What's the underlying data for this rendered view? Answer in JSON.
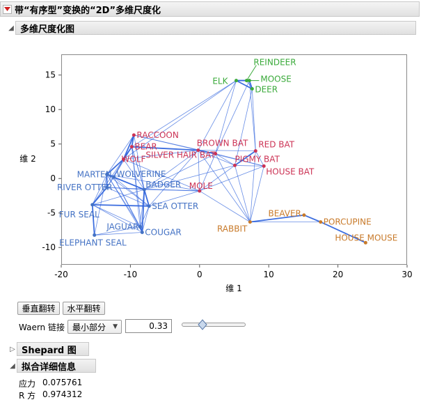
{
  "window": {
    "title": "带“有序型”变换的“2D”多维尺度化"
  },
  "mds_section": {
    "label": "多维尺度化图"
  },
  "plot": {
    "xlabel": "维 1",
    "ylabel": "维 2",
    "xlim": [
      -20,
      30
    ],
    "ylim": [
      -12.5,
      18
    ],
    "xticks": [
      -20,
      -10,
      0,
      10,
      20,
      30
    ],
    "yticks": [
      -10,
      -5,
      0,
      5,
      10,
      15
    ],
    "colors": {
      "green": "#3aaa3a",
      "red": "#cc3355",
      "blue": "#4472c4",
      "orange": "#c87a2a",
      "edge": "#3366dd"
    }
  },
  "chart_data": {
    "type": "scatter",
    "xlabel": "维 1",
    "ylabel": "维 2",
    "xlim": [
      -20,
      30
    ],
    "ylim": [
      -12.5,
      18
    ],
    "points": [
      {
        "label": "REINDEER",
        "x": 6.8,
        "y": 14.2,
        "group": "green",
        "anchor": "start",
        "dx": 10,
        "dy": -22
      },
      {
        "label": "ELK",
        "x": 5.3,
        "y": 14.2,
        "group": "green",
        "anchor": "end",
        "dx": -12,
        "dy": 5
      },
      {
        "label": "MOOSE",
        "x": 7.2,
        "y": 14.2,
        "group": "green",
        "anchor": "start",
        "dx": 16,
        "dy": 2
      },
      {
        "label": "DEER",
        "x": 7.6,
        "y": 13.0,
        "group": "green",
        "anchor": "start",
        "dx": 4,
        "dy": 5
      },
      {
        "label": "RACCOON",
        "x": -9.5,
        "y": 6.3,
        "group": "red",
        "anchor": "start",
        "dx": 4,
        "dy": 4
      },
      {
        "label": "BEAR",
        "x": -9.8,
        "y": 4.6,
        "group": "red",
        "anchor": "start",
        "dx": 4,
        "dy": 4
      },
      {
        "label": "WOLF",
        "x": -11.0,
        "y": 2.8,
        "group": "red",
        "anchor": "start",
        "dx": -3,
        "dy": 4
      },
      {
        "label": "BROWN BAT",
        "x": -0.2,
        "y": 4.1,
        "group": "red",
        "anchor": "start",
        "dx": -2,
        "dy": -6
      },
      {
        "label": "RED BAT",
        "x": 8.1,
        "y": 4.0,
        "group": "red",
        "anchor": "start",
        "dx": 4,
        "dy": -5
      },
      {
        "label": "SILVER HAIR BAT",
        "x": 2.3,
        "y": 3.6,
        "group": "red",
        "anchor": "end",
        "dx": 0,
        "dy": 6
      },
      {
        "label": "PIGMY BAT",
        "x": 5.1,
        "y": 1.9,
        "group": "red",
        "anchor": "start",
        "dx": 0,
        "dy": -5
      },
      {
        "label": "HOUSE BAT",
        "x": 9.3,
        "y": 1.8,
        "group": "red",
        "anchor": "start",
        "dx": 3,
        "dy": 12
      },
      {
        "label": "MOLE",
        "x": 0.0,
        "y": -1.8,
        "group": "red",
        "anchor": "end",
        "dx": 19,
        "dy": -3
      },
      {
        "label": "MARTEN",
        "x": -13.4,
        "y": 0.6,
        "group": "blue",
        "anchor": "end",
        "dx": 7,
        "dy": 4
      },
      {
        "label": "WOLVERINE",
        "x": -12.4,
        "y": 0.2,
        "group": "blue",
        "anchor": "start",
        "dx": 4,
        "dy": 0
      },
      {
        "label": "RIVER OTTER",
        "x": -13.4,
        "y": -1.3,
        "group": "blue",
        "anchor": "end",
        "dx": 8,
        "dy": 4
      },
      {
        "label": "BADGER",
        "x": -8.0,
        "y": -1.6,
        "group": "blue",
        "anchor": "start",
        "dx": 2,
        "dy": -3
      },
      {
        "label": "FUR SEAL",
        "x": -15.5,
        "y": -3.8,
        "group": "blue",
        "anchor": "end",
        "dx": 10,
        "dy": 18
      },
      {
        "label": "SEA OTTER",
        "x": -7.3,
        "y": -4.0,
        "group": "blue",
        "anchor": "start",
        "dx": 4,
        "dy": 4
      },
      {
        "label": "JAGUAR",
        "x": -8.6,
        "y": -7.0,
        "group": "blue",
        "anchor": "end",
        "dx": -2,
        "dy": 4
      },
      {
        "label": "COUGAR",
        "x": -8.3,
        "y": -7.8,
        "group": "blue",
        "anchor": "start",
        "dx": 4,
        "dy": 4
      },
      {
        "label": "ELEPHANT SEAL",
        "x": -15.2,
        "y": -8.2,
        "group": "blue",
        "anchor": "end",
        "dx": 46,
        "dy": 15
      },
      {
        "label": "RABBIT",
        "x": 7.3,
        "y": -6.3,
        "group": "orange",
        "anchor": "end",
        "dx": -4,
        "dy": 14
      },
      {
        "label": "BEAVER",
        "x": 15.1,
        "y": -5.3,
        "group": "orange",
        "anchor": "end",
        "dx": -4,
        "dy": 2
      },
      {
        "label": "PORCUPINE",
        "x": 17.5,
        "y": -6.3,
        "group": "orange",
        "anchor": "start",
        "dx": 4,
        "dy": 4
      },
      {
        "label": "HOUSE MOUSE",
        "x": 24.0,
        "y": -9.3,
        "group": "orange",
        "anchor": "middle",
        "dx": 1,
        "dy": -3
      }
    ],
    "edges": [
      [
        "REINDEER",
        "ELK"
      ],
      [
        "REINDEER",
        "MOOSE"
      ],
      [
        "ELK",
        "MOOSE"
      ],
      [
        "MOOSE",
        "DEER"
      ],
      [
        "ELK",
        "DEER"
      ],
      [
        "REINDEER",
        "DEER"
      ],
      [
        "ELK",
        "BROWN BAT"
      ],
      [
        "ELK",
        "SILVER HAIR BAT"
      ],
      [
        "MOOSE",
        "RED BAT"
      ],
      [
        "DEER",
        "RED BAT"
      ],
      [
        "DEER",
        "PIGMY BAT"
      ],
      [
        "ELK",
        "WOLF"
      ],
      [
        "ELK",
        "BEAR"
      ],
      [
        "MOOSE",
        "SILVER HAIR BAT"
      ],
      [
        "BROWN BAT",
        "RED BAT"
      ],
      [
        "BROWN BAT",
        "SILVER HAIR BAT"
      ],
      [
        "BROWN BAT",
        "PIGMY BAT"
      ],
      [
        "RED BAT",
        "PIGMY BAT"
      ],
      [
        "RED BAT",
        "HOUSE BAT"
      ],
      [
        "PIGMY BAT",
        "HOUSE BAT"
      ],
      [
        "SILVER HAIR BAT",
        "PIGMY BAT"
      ],
      [
        "SILVER HAIR BAT",
        "HOUSE BAT"
      ],
      [
        "BROWN BAT",
        "HOUSE BAT"
      ],
      [
        "RACCOON",
        "BEAR"
      ],
      [
        "RACCOON",
        "WOLF"
      ],
      [
        "RACCOON",
        "BROWN BAT"
      ],
      [
        "RACCOON",
        "MARTEN"
      ],
      [
        "RACCOON",
        "BADGER"
      ],
      [
        "RACCOON",
        "SILVER HAIR BAT"
      ],
      [
        "BEAR",
        "WOLF"
      ],
      [
        "BEAR",
        "BROWN BAT"
      ],
      [
        "BEAR",
        "BADGER"
      ],
      [
        "BEAR",
        "SEA OTTER"
      ],
      [
        "BEAR",
        "FUR SEAL"
      ],
      [
        "BEAR",
        "WOLVERINE"
      ],
      [
        "BEAR",
        "JAGUAR"
      ],
      [
        "BEAR",
        "COUGAR"
      ],
      [
        "WOLF",
        "MARTEN"
      ],
      [
        "WOLF",
        "WOLVERINE"
      ],
      [
        "WOLF",
        "BADGER"
      ],
      [
        "WOLF",
        "RIVER OTTER"
      ],
      [
        "WOLF",
        "BROWN BAT"
      ],
      [
        "WOLF",
        "MOLE"
      ],
      [
        "MARTEN",
        "WOLVERINE"
      ],
      [
        "MARTEN",
        "RIVER OTTER"
      ],
      [
        "MARTEN",
        "BADGER"
      ],
      [
        "MARTEN",
        "FUR SEAL"
      ],
      [
        "MARTEN",
        "SEA OTTER"
      ],
      [
        "MARTEN",
        "JAGUAR"
      ],
      [
        "MARTEN",
        "COUGAR"
      ],
      [
        "MARTEN",
        "MOLE"
      ],
      [
        "WOLVERINE",
        "RIVER OTTER"
      ],
      [
        "WOLVERINE",
        "BADGER"
      ],
      [
        "WOLVERINE",
        "SEA OTTER"
      ],
      [
        "WOLVERINE",
        "COUGAR"
      ],
      [
        "WOLVERINE",
        "JAGUAR"
      ],
      [
        "RIVER OTTER",
        "FUR SEAL"
      ],
      [
        "RIVER OTTER",
        "SEA OTTER"
      ],
      [
        "RIVER OTTER",
        "BADGER"
      ],
      [
        "RIVER OTTER",
        "MOLE"
      ],
      [
        "BADGER",
        "SEA OTTER"
      ],
      [
        "BADGER",
        "MOLE"
      ],
      [
        "BADGER",
        "COUGAR"
      ],
      [
        "BADGER",
        "JAGUAR"
      ],
      [
        "BADGER",
        "FUR SEAL"
      ],
      [
        "BADGER",
        "BROWN BAT"
      ],
      [
        "FUR SEAL",
        "SEA OTTER"
      ],
      [
        "FUR SEAL",
        "JAGUAR"
      ],
      [
        "FUR SEAL",
        "COUGAR"
      ],
      [
        "FUR SEAL",
        "ELEPHANT SEAL"
      ],
      [
        "SEA OTTER",
        "COUGAR"
      ],
      [
        "SEA OTTER",
        "JAGUAR"
      ],
      [
        "SEA OTTER",
        "MOLE"
      ],
      [
        "SEA OTTER",
        "BROWN BAT"
      ],
      [
        "JAGUAR",
        "COUGAR"
      ],
      [
        "ELEPHANT SEAL",
        "JAGUAR"
      ],
      [
        "ELEPHANT SEAL",
        "MARTEN"
      ],
      [
        "ELEPHANT SEAL",
        "COUGAR"
      ],
      [
        "MOLE",
        "BROWN BAT"
      ],
      [
        "MOLE",
        "PIGMY BAT"
      ],
      [
        "MOLE",
        "SILVER HAIR BAT"
      ],
      [
        "MOLE",
        "RABBIT"
      ],
      [
        "MOLE",
        "HOUSE BAT"
      ],
      [
        "RABBIT",
        "BEAVER"
      ],
      [
        "RABBIT",
        "PORCUPINE"
      ],
      [
        "BEAVER",
        "PORCUPINE"
      ],
      [
        "PORCUPINE",
        "HOUSE MOUSE"
      ],
      [
        "RABBIT",
        "BROWN BAT"
      ],
      [
        "RABBIT",
        "PIGMY BAT"
      ],
      [
        "RABBIT",
        "SILVER HAIR BAT"
      ],
      [
        "RABBIT",
        "HOUSE BAT"
      ],
      [
        "RABBIT",
        "RED BAT"
      ],
      [
        "SILVER HAIR BAT",
        "BADGER"
      ],
      [
        "PIGMY BAT",
        "BADGER"
      ]
    ],
    "strong_edges": [
      [
        "REINDEER",
        "ELK"
      ],
      [
        "ELK",
        "MOOSE"
      ],
      [
        "MOOSE",
        "DEER"
      ],
      [
        "ELK",
        "DEER"
      ],
      [
        "RACCOON",
        "BEAR"
      ],
      [
        "BEAR",
        "WOLF"
      ],
      [
        "RACCOON",
        "WOLF"
      ],
      [
        "BEAR",
        "BROWN BAT"
      ],
      [
        "BROWN BAT",
        "SILVER HAIR BAT"
      ],
      [
        "MARTEN",
        "WOLVERINE"
      ],
      [
        "MARTEN",
        "RIVER OTTER"
      ],
      [
        "WOLVERINE",
        "BADGER"
      ],
      [
        "BADGER",
        "SEA OTTER"
      ],
      [
        "FUR SEAL",
        "SEA OTTER"
      ],
      [
        "FUR SEAL",
        "ELEPHANT SEAL"
      ],
      [
        "JAGUAR",
        "COUGAR"
      ],
      [
        "RABBIT",
        "BEAVER"
      ],
      [
        "BEAVER",
        "PORCUPINE"
      ],
      [
        "PORCUPINE",
        "HOUSE MOUSE"
      ],
      [
        "WOLF",
        "MARTEN"
      ],
      [
        "FUR SEAL",
        "RIVER OTTER"
      ],
      [
        "RED BAT",
        "PIGMY BAT"
      ],
      [
        "BADGER",
        "COUGAR"
      ]
    ]
  },
  "controls": {
    "flip_vertical_label": "垂直翻转",
    "flip_horizontal_label": "水平翻转",
    "waern_label": "Waern 链接",
    "waern_method": "最小部分",
    "waern_value": "0.33",
    "slider_value": 0.33
  },
  "shepard_section": {
    "label": "Shepard 图"
  },
  "fit_section": {
    "label": "拟合详细信息",
    "stress_label": "应力",
    "stress_value": "0.075761",
    "r_label": "R 方",
    "r_value": "0.974312"
  }
}
